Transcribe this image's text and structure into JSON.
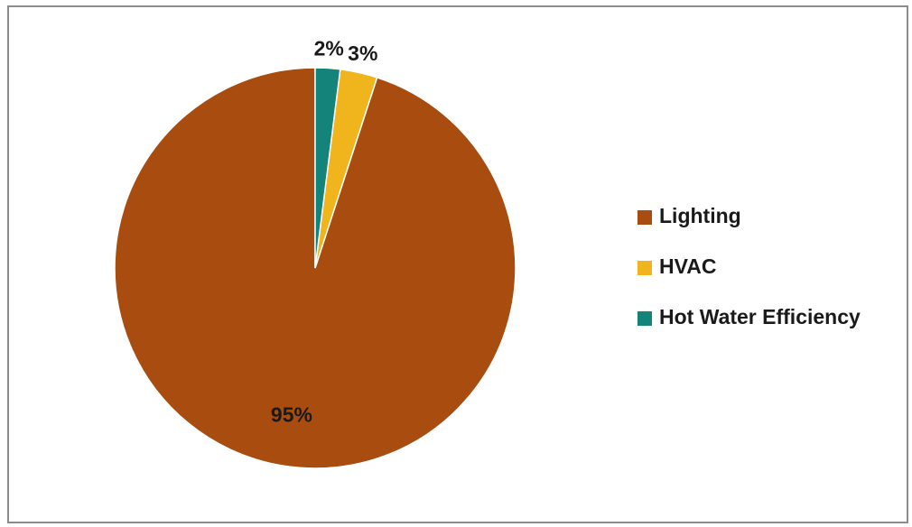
{
  "chart_data": {
    "type": "pie",
    "title": "",
    "categories": [
      "Lighting",
      "HVAC",
      "Hot Water Efficiency"
    ],
    "values": [
      95,
      3,
      2
    ],
    "data_labels": [
      "95%",
      "3%",
      "2%"
    ],
    "colors": [
      "#a84c10",
      "#f0b41c",
      "#14837a"
    ],
    "legend": {
      "placement": "right",
      "entries": [
        "Lighting",
        "HVAC",
        "Hot Water Efficiency"
      ]
    },
    "unit": "%"
  }
}
